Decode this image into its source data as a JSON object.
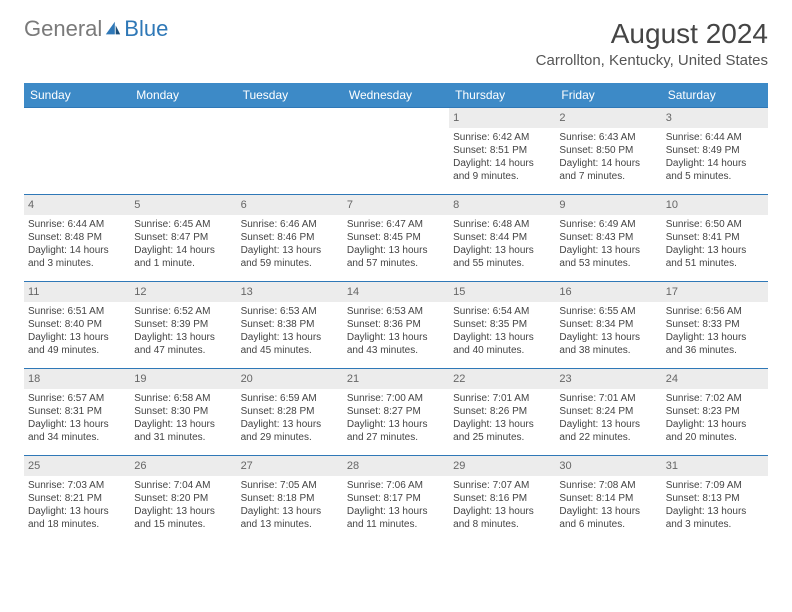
{
  "brand": {
    "word1": "General",
    "word2": "Blue"
  },
  "title": "August 2024",
  "location": "Carrollton, Kentucky, United States",
  "colors": {
    "header_bg": "#3d8ac7",
    "week_border": "#2f78b7",
    "daynum_bg": "#ececec",
    "text": "#444444"
  },
  "dow": [
    "Sunday",
    "Monday",
    "Tuesday",
    "Wednesday",
    "Thursday",
    "Friday",
    "Saturday"
  ],
  "weeks": [
    [
      {
        "n": "",
        "sr": "",
        "ss": "",
        "dl": ""
      },
      {
        "n": "",
        "sr": "",
        "ss": "",
        "dl": ""
      },
      {
        "n": "",
        "sr": "",
        "ss": "",
        "dl": ""
      },
      {
        "n": "",
        "sr": "",
        "ss": "",
        "dl": ""
      },
      {
        "n": "1",
        "sr": "Sunrise: 6:42 AM",
        "ss": "Sunset: 8:51 PM",
        "dl": "Daylight: 14 hours and 9 minutes."
      },
      {
        "n": "2",
        "sr": "Sunrise: 6:43 AM",
        "ss": "Sunset: 8:50 PM",
        "dl": "Daylight: 14 hours and 7 minutes."
      },
      {
        "n": "3",
        "sr": "Sunrise: 6:44 AM",
        "ss": "Sunset: 8:49 PM",
        "dl": "Daylight: 14 hours and 5 minutes."
      }
    ],
    [
      {
        "n": "4",
        "sr": "Sunrise: 6:44 AM",
        "ss": "Sunset: 8:48 PM",
        "dl": "Daylight: 14 hours and 3 minutes."
      },
      {
        "n": "5",
        "sr": "Sunrise: 6:45 AM",
        "ss": "Sunset: 8:47 PM",
        "dl": "Daylight: 14 hours and 1 minute."
      },
      {
        "n": "6",
        "sr": "Sunrise: 6:46 AM",
        "ss": "Sunset: 8:46 PM",
        "dl": "Daylight: 13 hours and 59 minutes."
      },
      {
        "n": "7",
        "sr": "Sunrise: 6:47 AM",
        "ss": "Sunset: 8:45 PM",
        "dl": "Daylight: 13 hours and 57 minutes."
      },
      {
        "n": "8",
        "sr": "Sunrise: 6:48 AM",
        "ss": "Sunset: 8:44 PM",
        "dl": "Daylight: 13 hours and 55 minutes."
      },
      {
        "n": "9",
        "sr": "Sunrise: 6:49 AM",
        "ss": "Sunset: 8:43 PM",
        "dl": "Daylight: 13 hours and 53 minutes."
      },
      {
        "n": "10",
        "sr": "Sunrise: 6:50 AM",
        "ss": "Sunset: 8:41 PM",
        "dl": "Daylight: 13 hours and 51 minutes."
      }
    ],
    [
      {
        "n": "11",
        "sr": "Sunrise: 6:51 AM",
        "ss": "Sunset: 8:40 PM",
        "dl": "Daylight: 13 hours and 49 minutes."
      },
      {
        "n": "12",
        "sr": "Sunrise: 6:52 AM",
        "ss": "Sunset: 8:39 PM",
        "dl": "Daylight: 13 hours and 47 minutes."
      },
      {
        "n": "13",
        "sr": "Sunrise: 6:53 AM",
        "ss": "Sunset: 8:38 PM",
        "dl": "Daylight: 13 hours and 45 minutes."
      },
      {
        "n": "14",
        "sr": "Sunrise: 6:53 AM",
        "ss": "Sunset: 8:36 PM",
        "dl": "Daylight: 13 hours and 43 minutes."
      },
      {
        "n": "15",
        "sr": "Sunrise: 6:54 AM",
        "ss": "Sunset: 8:35 PM",
        "dl": "Daylight: 13 hours and 40 minutes."
      },
      {
        "n": "16",
        "sr": "Sunrise: 6:55 AM",
        "ss": "Sunset: 8:34 PM",
        "dl": "Daylight: 13 hours and 38 minutes."
      },
      {
        "n": "17",
        "sr": "Sunrise: 6:56 AM",
        "ss": "Sunset: 8:33 PM",
        "dl": "Daylight: 13 hours and 36 minutes."
      }
    ],
    [
      {
        "n": "18",
        "sr": "Sunrise: 6:57 AM",
        "ss": "Sunset: 8:31 PM",
        "dl": "Daylight: 13 hours and 34 minutes."
      },
      {
        "n": "19",
        "sr": "Sunrise: 6:58 AM",
        "ss": "Sunset: 8:30 PM",
        "dl": "Daylight: 13 hours and 31 minutes."
      },
      {
        "n": "20",
        "sr": "Sunrise: 6:59 AM",
        "ss": "Sunset: 8:28 PM",
        "dl": "Daylight: 13 hours and 29 minutes."
      },
      {
        "n": "21",
        "sr": "Sunrise: 7:00 AM",
        "ss": "Sunset: 8:27 PM",
        "dl": "Daylight: 13 hours and 27 minutes."
      },
      {
        "n": "22",
        "sr": "Sunrise: 7:01 AM",
        "ss": "Sunset: 8:26 PM",
        "dl": "Daylight: 13 hours and 25 minutes."
      },
      {
        "n": "23",
        "sr": "Sunrise: 7:01 AM",
        "ss": "Sunset: 8:24 PM",
        "dl": "Daylight: 13 hours and 22 minutes."
      },
      {
        "n": "24",
        "sr": "Sunrise: 7:02 AM",
        "ss": "Sunset: 8:23 PM",
        "dl": "Daylight: 13 hours and 20 minutes."
      }
    ],
    [
      {
        "n": "25",
        "sr": "Sunrise: 7:03 AM",
        "ss": "Sunset: 8:21 PM",
        "dl": "Daylight: 13 hours and 18 minutes."
      },
      {
        "n": "26",
        "sr": "Sunrise: 7:04 AM",
        "ss": "Sunset: 8:20 PM",
        "dl": "Daylight: 13 hours and 15 minutes."
      },
      {
        "n": "27",
        "sr": "Sunrise: 7:05 AM",
        "ss": "Sunset: 8:18 PM",
        "dl": "Daylight: 13 hours and 13 minutes."
      },
      {
        "n": "28",
        "sr": "Sunrise: 7:06 AM",
        "ss": "Sunset: 8:17 PM",
        "dl": "Daylight: 13 hours and 11 minutes."
      },
      {
        "n": "29",
        "sr": "Sunrise: 7:07 AM",
        "ss": "Sunset: 8:16 PM",
        "dl": "Daylight: 13 hours and 8 minutes."
      },
      {
        "n": "30",
        "sr": "Sunrise: 7:08 AM",
        "ss": "Sunset: 8:14 PM",
        "dl": "Daylight: 13 hours and 6 minutes."
      },
      {
        "n": "31",
        "sr": "Sunrise: 7:09 AM",
        "ss": "Sunset: 8:13 PM",
        "dl": "Daylight: 13 hours and 3 minutes."
      }
    ]
  ]
}
